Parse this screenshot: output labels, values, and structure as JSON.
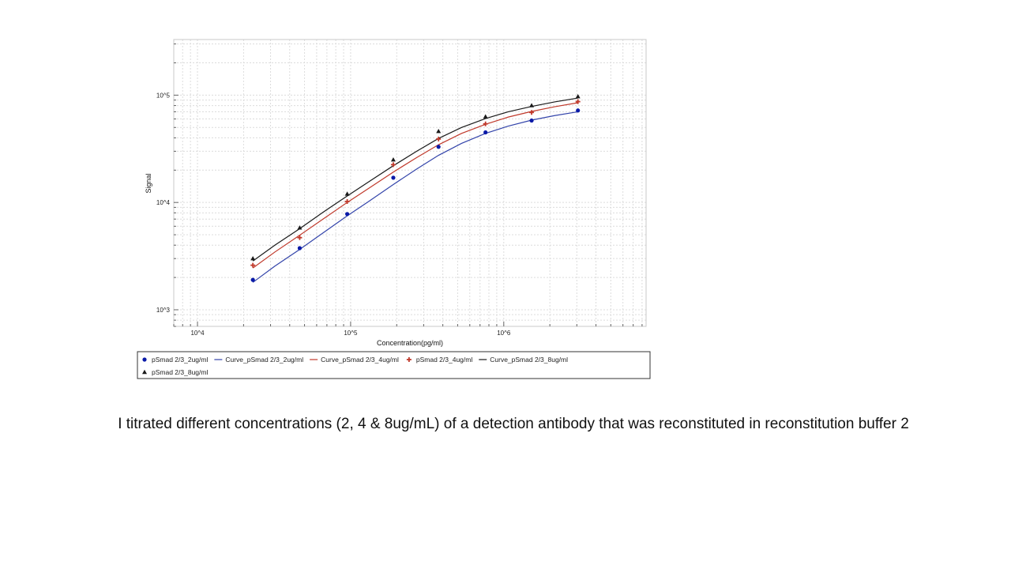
{
  "chart_data": {
    "type": "scatter",
    "xlabel": "Concentration(pg/ml)",
    "ylabel": "Signal",
    "x_scale": "log",
    "y_scale": "log",
    "xlim": [
      7000,
      8500000
    ],
    "ylim": [
      700,
      330000
    ],
    "x_ticks": [
      10000,
      100000,
      1000000
    ],
    "x_tick_labels": [
      "10^4",
      "10^5",
      "10^6"
    ],
    "y_ticks": [
      1000,
      10000,
      100000
    ],
    "y_tick_labels": [
      "10^3",
      "10^4",
      "10^5"
    ],
    "grid": true,
    "legend_position": "bottom",
    "series": [
      {
        "name": "pSmad 2/3_2ug/ml",
        "kind": "points",
        "marker": "circle",
        "color": "#0a1aa8",
        "x": [
          23000,
          46500,
          95000,
          190000,
          375000,
          760000,
          1520000,
          3050000
        ],
        "y": [
          1900,
          3750,
          7800,
          17000,
          33000,
          45000,
          58000,
          72000
        ]
      },
      {
        "name": "Curve_pSmad 2/3_2ug/ml",
        "kind": "line",
        "color": "#3344aa",
        "x": [
          23000,
          32000,
          46500,
          66000,
          95000,
          135000,
          190000,
          270000,
          375000,
          530000,
          760000,
          1070000,
          1520000,
          2150000,
          3050000
        ],
        "y": [
          1800,
          2550,
          3650,
          5200,
          7500,
          10500,
          14700,
          20500,
          27500,
          35500,
          44000,
          51500,
          58500,
          64500,
          70000
        ]
      },
      {
        "name": "Curve_pSmad 2/3_4ug/ml",
        "kind": "line",
        "color": "#c0392b",
        "x": [
          23000,
          32000,
          46500,
          66000,
          95000,
          135000,
          190000,
          270000,
          375000,
          530000,
          760000,
          1070000,
          1520000,
          2150000,
          3050000
        ],
        "y": [
          2450,
          3450,
          4950,
          7000,
          10000,
          13900,
          19200,
          26200,
          34500,
          44000,
          53500,
          62500,
          70500,
          78000,
          85000
        ]
      },
      {
        "name": "pSmad 2/3_4ug/ml",
        "kind": "points",
        "marker": "plus",
        "color": "#c0392b",
        "x": [
          23000,
          46500,
          95000,
          190000,
          375000,
          760000,
          1520000,
          3050000
        ],
        "y": [
          2600,
          4700,
          10200,
          22500,
          39000,
          54000,
          69000,
          87000
        ]
      },
      {
        "name": "Curve_pSmad 2/3_8ug/ml",
        "kind": "line",
        "color": "#1a1a1a",
        "x": [
          23000,
          32000,
          46500,
          66000,
          95000,
          135000,
          190000,
          270000,
          375000,
          530000,
          760000,
          1070000,
          1520000,
          2150000,
          3050000
        ],
        "y": [
          2850,
          4000,
          5700,
          8100,
          11500,
          16000,
          22000,
          30000,
          39500,
          50000,
          60500,
          70000,
          78500,
          86500,
          94000
        ]
      },
      {
        "name": "pSmad 2/3_8ug/ml",
        "kind": "points",
        "marker": "triangle",
        "color": "#1a1a1a",
        "x": [
          23000,
          46500,
          95000,
          190000,
          375000,
          760000,
          1520000,
          3050000
        ],
        "y": [
          3000,
          5800,
          12000,
          25000,
          46000,
          63000,
          80000,
          97000
        ]
      }
    ]
  },
  "legend": {
    "row1": [
      {
        "label": "pSmad 2/3_2ug/ml",
        "symbol": "circle",
        "color": "#0a1aa8"
      },
      {
        "label": "Curve_pSmad 2/3_2ug/ml",
        "symbol": "line",
        "color": "#3344aa"
      },
      {
        "label": "Curve_pSmad 2/3_4ug/ml",
        "symbol": "line",
        "color": "#c0392b"
      },
      {
        "label": "pSmad 2/3_4ug/ml",
        "symbol": "plus",
        "color": "#c0392b"
      },
      {
        "label": "Curve_pSmad 2/3_8ug/ml",
        "symbol": "line",
        "color": "#1a1a1a"
      }
    ],
    "row2": [
      {
        "label": "pSmad 2/3_8ug/ml",
        "symbol": "triangle",
        "color": "#1a1a1a"
      }
    ]
  },
  "caption": "I titrated different concentrations (2, 4 & 8ug/mL) of a detection antibody that was reconstituted in reconstitution buffer 2"
}
